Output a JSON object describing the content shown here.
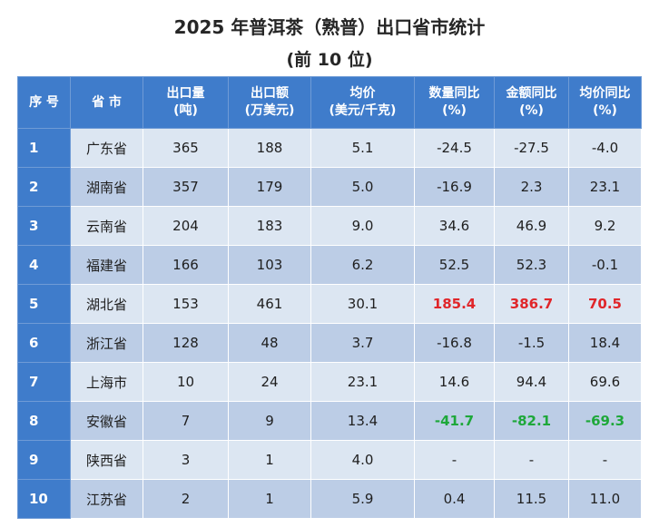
{
  "title": "2025 年普洱茶（熟普）出口省市统计",
  "subtitle": "(前 10 位)",
  "table": {
    "headers": [
      {
        "line1": "序 号",
        "line2": ""
      },
      {
        "line1": "省 市",
        "line2": ""
      },
      {
        "line1": "出口量",
        "line2": "(吨)"
      },
      {
        "line1": "出口额",
        "line2": "(万美元)"
      },
      {
        "line1": "均价",
        "line2": "(美元/千克)"
      },
      {
        "line1": "数量同比",
        "line2": "(%)"
      },
      {
        "line1": "金额同比",
        "line2": "(%)"
      },
      {
        "line1": "均价同比",
        "line2": "(%)"
      }
    ],
    "rows": [
      {
        "rank": "1",
        "province": "广东省",
        "volume": "365",
        "value": "188",
        "price": "5.1",
        "vol_yoy": "-24.5",
        "val_yoy": "-27.5",
        "price_yoy": "-4.0",
        "highlight": ""
      },
      {
        "rank": "2",
        "province": "湖南省",
        "volume": "357",
        "value": "179",
        "price": "5.0",
        "vol_yoy": "-16.9",
        "val_yoy": "2.3",
        "price_yoy": "23.1",
        "highlight": ""
      },
      {
        "rank": "3",
        "province": "云南省",
        "volume": "204",
        "value": "183",
        "price": "9.0",
        "vol_yoy": "34.6",
        "val_yoy": "46.9",
        "price_yoy": "9.2",
        "highlight": ""
      },
      {
        "rank": "4",
        "province": "福建省",
        "volume": "166",
        "value": "103",
        "price": "6.2",
        "vol_yoy": "52.5",
        "val_yoy": "52.3",
        "price_yoy": "-0.1",
        "highlight": ""
      },
      {
        "rank": "5",
        "province": "湖北省",
        "volume": "153",
        "value": "461",
        "price": "30.1",
        "vol_yoy": "185.4",
        "val_yoy": "386.7",
        "price_yoy": "70.5",
        "highlight": "red"
      },
      {
        "rank": "6",
        "province": "浙江省",
        "volume": "128",
        "value": "48",
        "price": "3.7",
        "vol_yoy": "-16.8",
        "val_yoy": "-1.5",
        "price_yoy": "18.4",
        "highlight": ""
      },
      {
        "rank": "7",
        "province": "上海市",
        "volume": "10",
        "value": "24",
        "price": "23.1",
        "vol_yoy": "14.6",
        "val_yoy": "94.4",
        "price_yoy": "69.6",
        "highlight": ""
      },
      {
        "rank": "8",
        "province": "安徽省",
        "volume": "7",
        "value": "9",
        "price": "13.4",
        "vol_yoy": "-41.7",
        "val_yoy": "-82.1",
        "price_yoy": "-69.3",
        "highlight": "green"
      },
      {
        "rank": "9",
        "province": "陕西省",
        "volume": "3",
        "value": "1",
        "price": "4.0",
        "vol_yoy": "-",
        "val_yoy": "-",
        "price_yoy": "-",
        "highlight": ""
      },
      {
        "rank": "10",
        "province": "江苏省",
        "volume": "2",
        "value": "1",
        "price": "5.9",
        "vol_yoy": "0.4",
        "val_yoy": "11.5",
        "price_yoy": "11.0",
        "highlight": ""
      }
    ]
  },
  "colors": {
    "header_bg": "#3f7ccb",
    "row_light": "#dce6f2",
    "row_dark": "#bccde6",
    "highlight_red": "#e0262a",
    "highlight_green": "#1ea83a"
  }
}
